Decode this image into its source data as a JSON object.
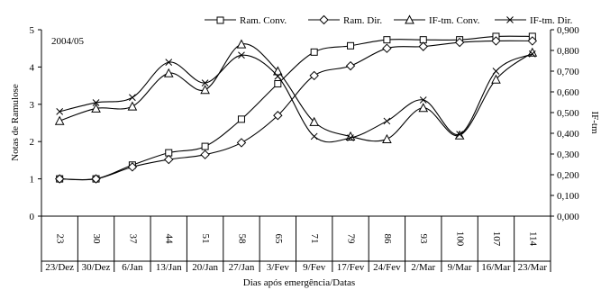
{
  "chart_data": {
    "type": "line",
    "annotation": "2004/05",
    "xlabel": "Dias após emergência/Datas",
    "ylabel_left": "Notas de Ramulose",
    "ylabel_right": "IF-tm",
    "x_days": [
      "23",
      "30",
      "37",
      "44",
      "51",
      "58",
      "65",
      "71",
      "79",
      "86",
      "93",
      "100",
      "107",
      "114"
    ],
    "x_dates": [
      "23/Dez",
      "30/Dez",
      "6/Jan",
      "13/Jan",
      "20/Jan",
      "27/Jan",
      "3/Fev",
      "9/Fev",
      "17/Fev",
      "24/Fev",
      "2/Mar",
      "9/Mar",
      "16/Mar",
      "23/Mar"
    ],
    "ylim_left": [
      0,
      5
    ],
    "yticks_left": [
      "0",
      "1",
      "2",
      "3",
      "4",
      "5"
    ],
    "ylim_right": [
      0,
      0.9
    ],
    "yticks_right": [
      "0,000",
      "0,100",
      "0,200",
      "0,300",
      "0,400",
      "0,500",
      "0,600",
      "0,700",
      "0,800",
      "0,900"
    ],
    "legend_position": "top",
    "grid": false,
    "series": [
      {
        "name": "Ram. Conv.",
        "axis": "left",
        "marker": "square",
        "values": [
          1.0,
          1.0,
          1.37,
          1.7,
          1.87,
          2.6,
          3.55,
          4.4,
          4.57,
          4.73,
          4.73,
          4.73,
          4.82,
          4.82
        ]
      },
      {
        "name": "Ram. Dir.",
        "axis": "left",
        "marker": "diamond",
        "values": [
          1.0,
          1.0,
          1.32,
          1.52,
          1.65,
          1.97,
          2.7,
          3.77,
          4.03,
          4.5,
          4.55,
          4.66,
          4.7,
          4.7
        ]
      },
      {
        "name": "IF-tm. Conv.",
        "axis": "right",
        "marker": "triangle",
        "values": [
          0.46,
          0.52,
          0.53,
          0.69,
          0.61,
          0.83,
          0.7,
          0.455,
          0.385,
          0.372,
          0.523,
          0.39,
          0.66,
          0.79
        ]
      },
      {
        "name": "IF-tm. Dir.",
        "axis": "right",
        "marker": "x",
        "values": [
          0.505,
          0.548,
          0.573,
          0.743,
          0.643,
          0.777,
          0.675,
          0.385,
          0.378,
          0.459,
          0.561,
          0.395,
          0.7,
          0.783
        ]
      }
    ]
  }
}
